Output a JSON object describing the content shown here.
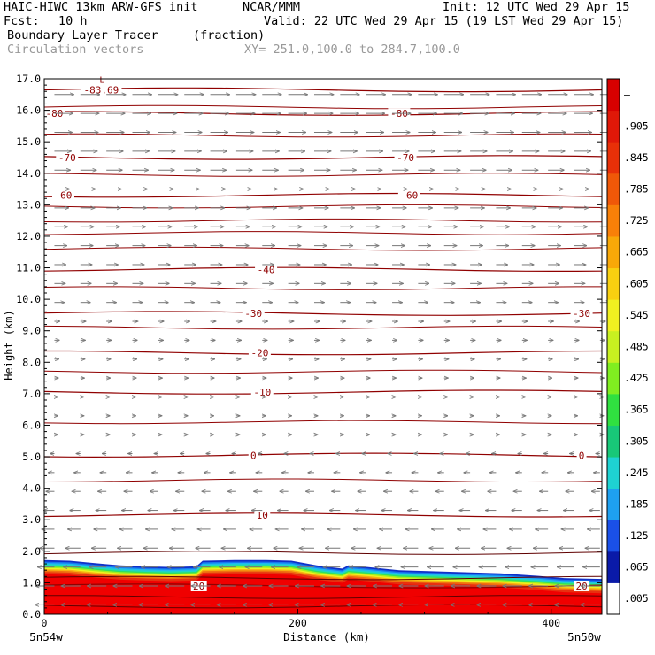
{
  "header": {
    "model": "HAIC-HIWC 13km ARW-GFS init",
    "org": "NCAR/MMM",
    "init": "Init: 12 UTC Wed 29 Apr 15",
    "fcst_label": "Fcst:",
    "fcst_value": "10 h",
    "valid": "Valid: 22 UTC Wed 29 Apr 15 (19 LST Wed 29 Apr 15)",
    "field": "Boundary Layer Tracer",
    "field_units": "(fraction)",
    "overlay": "Circulation vectors",
    "xsection": "XY= 251.0,100.0 to 284.7,100.0"
  },
  "chart_data": {
    "type": "heatmap",
    "ylabel": "Height (km)",
    "xlabel": "Distance (km)",
    "ylim": [
      0,
      17
    ],
    "xlim": [
      0,
      440
    ],
    "y_ticks": [
      "0.0",
      "1.0",
      "2.0",
      "3.0",
      "4.0",
      "5.0",
      "6.0",
      "7.0",
      "8.0",
      "9.0",
      "10.0",
      "11.0",
      "12.0",
      "13.0",
      "14.0",
      "15.0",
      "16.0",
      "17.0"
    ],
    "x_ticks": [
      {
        "value": 0,
        "label": "0"
      },
      {
        "value": 200,
        "label": "200"
      },
      {
        "value": 400,
        "label": "400"
      }
    ],
    "x_end_labels": {
      "left": "5n54w",
      "right": "5n50w"
    },
    "colorbar_labels": [
      ".005",
      ".065",
      ".125",
      ".185",
      ".245",
      ".305",
      ".365",
      ".425",
      ".485",
      ".545",
      ".605",
      ".665",
      ".725",
      ".785",
      ".845",
      ".905",
      "–"
    ],
    "colorbar_colors": [
      "#ffffff",
      "#0a1aa8",
      "#1a50e8",
      "#1ea0f0",
      "#1ed2d2",
      "#18c878",
      "#30e040",
      "#80ee20",
      "#c8f020",
      "#f0f020",
      "#f8d010",
      "#f8a808",
      "#f88008",
      "#f05808",
      "#e83008",
      "#e01808",
      "#d80000"
    ],
    "tracer_top_km": [
      [
        0,
        1.72
      ],
      [
        20,
        1.7
      ],
      [
        40,
        1.62
      ],
      [
        60,
        1.55
      ],
      [
        80,
        1.52
      ],
      [
        100,
        1.5
      ],
      [
        120,
        1.52
      ],
      [
        125,
        1.7
      ],
      [
        150,
        1.72
      ],
      [
        175,
        1.72
      ],
      [
        195,
        1.7
      ],
      [
        215,
        1.55
      ],
      [
        235,
        1.45
      ],
      [
        240,
        1.55
      ],
      [
        255,
        1.5
      ],
      [
        280,
        1.4
      ],
      [
        320,
        1.35
      ],
      [
        360,
        1.3
      ],
      [
        390,
        1.22
      ],
      [
        410,
        1.15
      ],
      [
        440,
        1.12
      ]
    ],
    "isotherms_km": [
      {
        "label": "-83.69",
        "h": 16.65,
        "lx": [
          45
        ]
      },
      {
        "label": "-80",
        "h": 15.9,
        "lx": [
          8,
          280
        ]
      },
      {
        "label": "-70",
        "h": 14.5,
        "lx": [
          18,
          285
        ]
      },
      {
        "label": "-60",
        "h": 13.3,
        "lx": [
          15,
          288
        ]
      },
      {
        "label": "-40",
        "h": 10.95,
        "lx": [
          175
        ]
      },
      {
        "label": "-30",
        "h": 9.55,
        "lx": [
          165,
          424
        ]
      },
      {
        "label": "-20",
        "h": 8.3,
        "lx": [
          170
        ]
      },
      {
        "label": "-10",
        "h": 7.05,
        "lx": [
          172
        ]
      },
      {
        "label": "0",
        "h": 5.05,
        "lx": [
          165,
          424
        ]
      },
      {
        "label": "10",
        "h": 3.15,
        "lx": [
          172
        ]
      },
      {
        "label": "20",
        "h": 0.9,
        "lx": [
          122,
          424
        ]
      }
    ],
    "extra_lines_km": [
      16.1,
      15.2,
      13.95,
      12.95,
      12.5,
      12.1,
      11.6,
      10.35,
      9.1,
      7.7,
      6.1,
      4.25,
      1.95,
      1.15,
      0.55,
      0.25
    ]
  }
}
